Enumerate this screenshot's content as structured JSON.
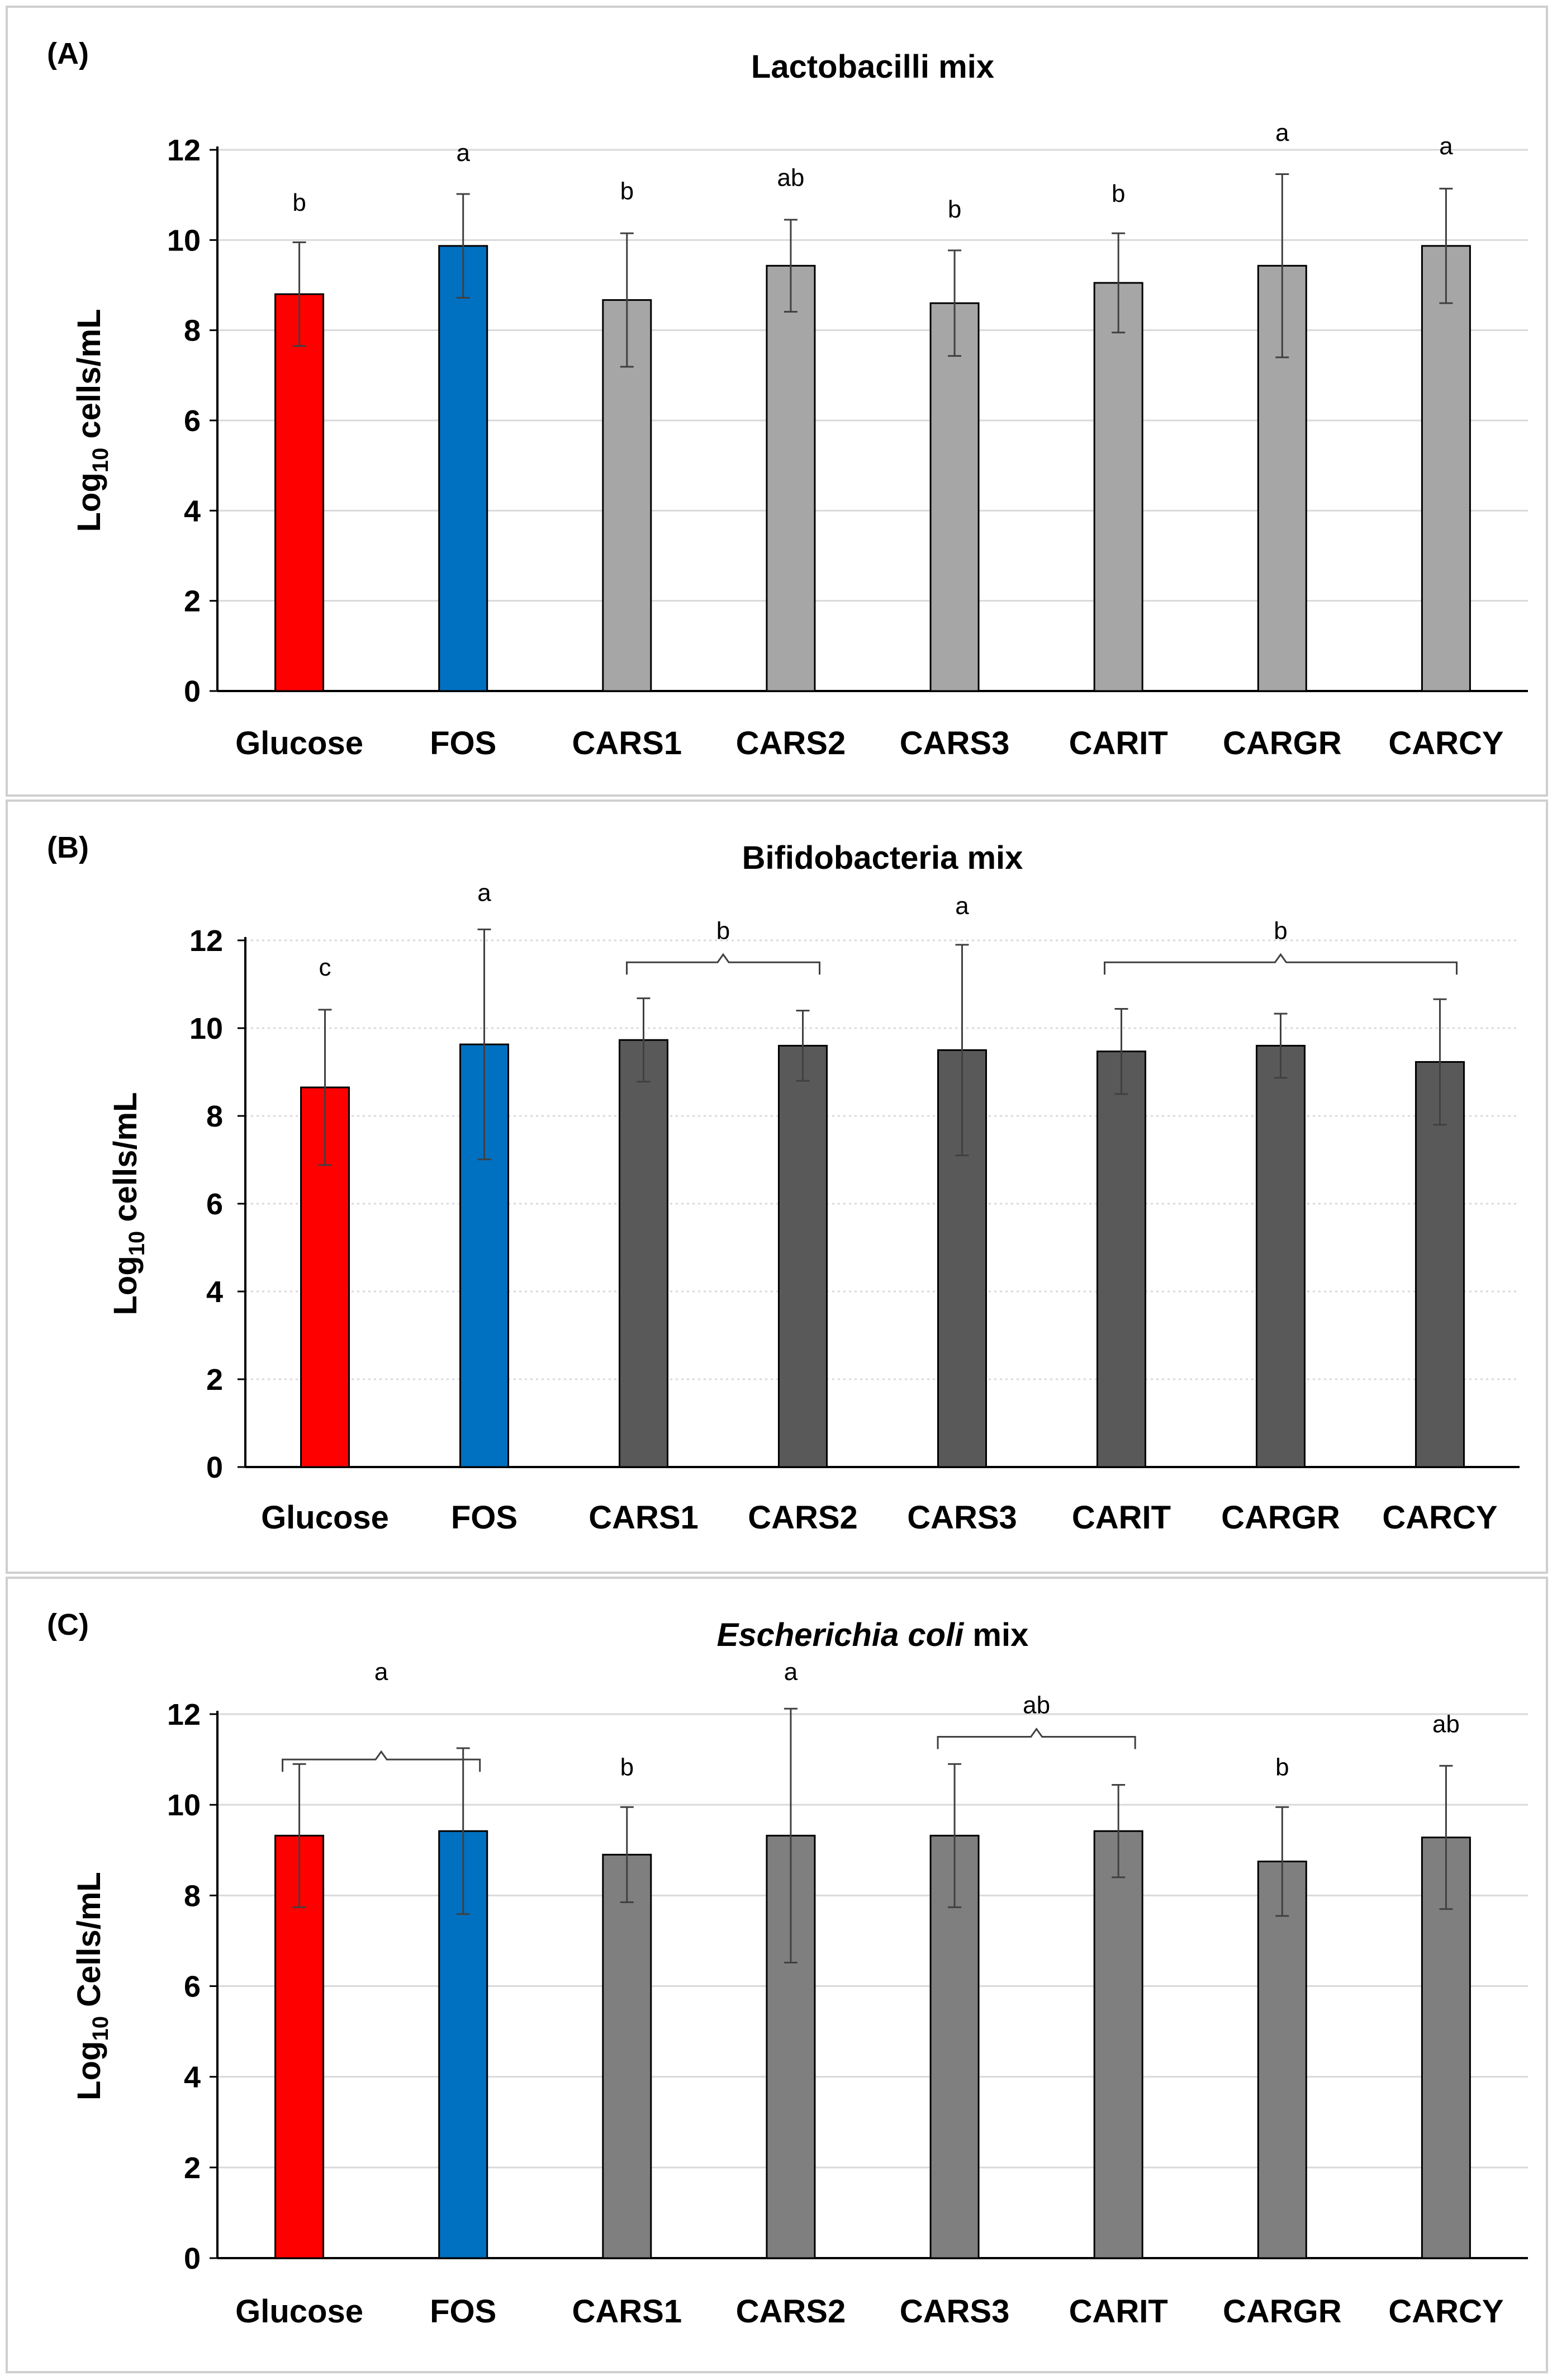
{
  "chart_data": [
    {
      "type": "bar",
      "panel_label": "(A)",
      "title": "Lactobacilli mix",
      "title_italic_part": "",
      "title_rest": "",
      "ylabel_main": "Log",
      "ylabel_sub": "10",
      "ylabel_tail": " cells/mL",
      "ylim": [
        0,
        12
      ],
      "yticks": [
        0,
        2,
        4,
        6,
        8,
        10,
        12
      ],
      "grid": "solid",
      "categories": [
        "Glucose",
        "FOS",
        "CARS1",
        "CARS2",
        "CARS3",
        "CARIT",
        "CARGR",
        "CARCY"
      ],
      "values": [
        8.8,
        9.87,
        8.67,
        9.43,
        8.6,
        9.05,
        9.43,
        9.87
      ],
      "errors": [
        1.15,
        1.15,
        1.48,
        1.02,
        1.17,
        1.1,
        2.03,
        1.27
      ],
      "colors": [
        "#ff0000",
        "#0070c0",
        "#a6a6a6",
        "#a6a6a6",
        "#a6a6a6",
        "#a6a6a6",
        "#a6a6a6",
        "#a6a6a6"
      ],
      "letters": [
        {
          "text": "b",
          "index": 0,
          "y": 10.65
        },
        {
          "text": "a",
          "index": 1,
          "y": 11.75
        },
        {
          "text": "b",
          "index": 2,
          "y": 10.9
        },
        {
          "text": "ab",
          "index": 3,
          "y": 11.2
        },
        {
          "text": "b",
          "index": 4,
          "y": 10.5
        },
        {
          "text": "b",
          "index": 5,
          "y": 10.85
        },
        {
          "text": "a",
          "index": 6,
          "y": 12.2
        },
        {
          "text": "a",
          "index": 7,
          "y": 11.9
        }
      ],
      "brackets": []
    },
    {
      "type": "bar",
      "panel_label": "(B)",
      "title": "Bifidobacteria mix",
      "title_italic_part": "",
      "title_rest": "",
      "ylabel_main": "Log",
      "ylabel_sub": "10",
      "ylabel_tail": " cells/mL",
      "ylim": [
        0,
        12
      ],
      "yticks": [
        0,
        2,
        4,
        6,
        8,
        10,
        12
      ],
      "grid": "dotted",
      "categories": [
        "Glucose",
        "FOS",
        "CARS1",
        "CARS2",
        "CARS3",
        "CARIT",
        "CARGR",
        "CARCY"
      ],
      "values": [
        8.65,
        9.63,
        9.73,
        9.6,
        9.5,
        9.47,
        9.6,
        9.23
      ],
      "errors": [
        1.77,
        2.62,
        0.95,
        0.8,
        2.4,
        0.97,
        0.73,
        1.43
      ],
      "colors": [
        "#ff0000",
        "#0070c0",
        "#595959",
        "#595959",
        "#595959",
        "#595959",
        "#595959",
        "#595959"
      ],
      "letters": [
        {
          "text": "c",
          "index": 0,
          "y": 11.2
        },
        {
          "text": "a",
          "index": 1,
          "y": 12.9
        },
        {
          "text": "a",
          "index": 4,
          "y": 12.6
        }
      ],
      "brackets": [
        {
          "text": "b",
          "from": 2,
          "to": 3,
          "y": 11.5
        },
        {
          "text": "b",
          "from": 5,
          "to": 7,
          "y": 11.5
        }
      ]
    },
    {
      "type": "bar",
      "panel_label": "(C)",
      "title": "",
      "title_italic_part": "Escherichia coli",
      "title_rest": " mix",
      "ylabel_main": "Log",
      "ylabel_sub": "10",
      "ylabel_tail": " Cells/mL",
      "ylim": [
        0,
        12
      ],
      "yticks": [
        0,
        2,
        4,
        6,
        8,
        10,
        12
      ],
      "grid": "solid",
      "categories": [
        "Glucose",
        "FOS",
        "CARS1",
        "CARS2",
        "CARS3",
        "CARIT",
        "CARGR",
        "CARCY"
      ],
      "values": [
        9.32,
        9.42,
        8.9,
        9.32,
        9.32,
        9.42,
        8.75,
        9.28
      ],
      "errors": [
        1.58,
        1.83,
        1.05,
        2.8,
        1.58,
        1.02,
        1.2,
        1.58
      ],
      "colors": [
        "#ff0000",
        "#0070c0",
        "#7f7f7f",
        "#7f7f7f",
        "#7f7f7f",
        "#7f7f7f",
        "#7f7f7f",
        "#7f7f7f"
      ],
      "letters": [
        {
          "text": "b",
          "index": 2,
          "y": 10.65
        },
        {
          "text": "a",
          "index": 3,
          "y": 12.75
        },
        {
          "text": "b",
          "index": 6,
          "y": 10.65
        },
        {
          "text": "ab",
          "index": 7,
          "y": 11.6
        }
      ],
      "brackets": [
        {
          "text": "a",
          "from": 0,
          "to": 1,
          "y": 11.0,
          "label_y": 12.75
        },
        {
          "text": "ab",
          "from": 4,
          "to": 5,
          "y": 11.5
        }
      ]
    }
  ]
}
